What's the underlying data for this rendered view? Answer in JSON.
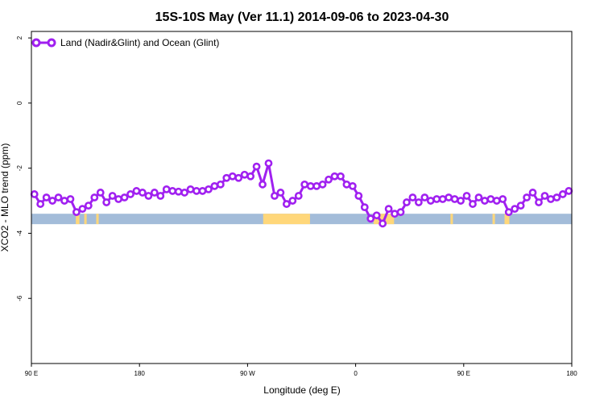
{
  "chart_data": {
    "type": "line",
    "title": "15S-10S May (Ver 11.1)   2014-09-06 to 2023-04-30",
    "xlabel": "Longitude (deg E)",
    "ylabel": "XCO2 - MLO trend (ppm)",
    "xlim": [
      90,
      540
    ],
    "ylim": [
      -8,
      2.2
    ],
    "x_ticks": [
      {
        "value": 90,
        "label": "90 E"
      },
      {
        "value": 180,
        "label": "180"
      },
      {
        "value": 270,
        "label": "90 W"
      },
      {
        "value": 360,
        "label": "0"
      },
      {
        "value": 450,
        "label": "90 E"
      },
      {
        "value": 540,
        "label": "180"
      }
    ],
    "y_ticks": [
      {
        "value": 2,
        "label": "2"
      },
      {
        "value": 0,
        "label": "0"
      },
      {
        "value": -2,
        "label": "-2"
      },
      {
        "value": -4,
        "label": "-4"
      },
      {
        "value": -6,
        "label": "-6"
      }
    ],
    "legend_position": "top-left",
    "series": [
      {
        "name": "Land (Nadir&Glint) and Ocean (Glint)",
        "color": "#a020f0",
        "x": [
          92.5,
          97.5,
          102.5,
          107.5,
          112.5,
          117.5,
          122.5,
          127.5,
          132.5,
          137.5,
          142.5,
          147.5,
          152.5,
          157.5,
          162.5,
          167.5,
          172.5,
          177.5,
          182.5,
          187.5,
          192.5,
          197.5,
          202.5,
          207.5,
          212.5,
          217.5,
          222.5,
          227.5,
          232.5,
          237.5,
          242.5,
          247.5,
          252.5,
          257.5,
          262.5,
          267.5,
          272.5,
          277.5,
          282.5,
          287.5,
          292.5,
          297.5,
          302.5,
          307.5,
          312.5,
          317.5,
          322.5,
          327.5,
          332.5,
          337.5,
          342.5,
          347.5,
          352.5,
          357.5,
          362.5,
          367.5,
          372.5,
          377.5,
          382.5,
          387.5,
          392.5,
          397.5,
          402.5,
          407.5,
          412.5,
          417.5,
          422.5,
          427.5,
          432.5,
          437.5,
          442.5,
          447.5,
          452.5,
          457.5,
          462.5,
          467.5,
          472.5,
          477.5,
          482.5,
          487.5,
          492.5,
          497.5,
          502.5,
          507.5,
          512.5,
          517.5,
          522.5,
          527.5,
          532.5,
          537.5
        ],
        "y": [
          -2.8,
          -3.1,
          -2.9,
          -3.0,
          -2.9,
          -3.0,
          -2.95,
          -3.35,
          -3.25,
          -3.15,
          -2.9,
          -2.75,
          -3.05,
          -2.85,
          -2.95,
          -2.9,
          -2.8,
          -2.7,
          -2.75,
          -2.85,
          -2.75,
          -2.85,
          -2.65,
          -2.7,
          -2.72,
          -2.75,
          -2.65,
          -2.7,
          -2.7,
          -2.65,
          -2.55,
          -2.5,
          -2.3,
          -2.25,
          -2.3,
          -2.2,
          -2.25,
          -1.95,
          -2.5,
          -1.85,
          -2.85,
          -2.75,
          -3.1,
          -3.0,
          -2.85,
          -2.5,
          -2.55,
          -2.55,
          -2.5,
          -2.35,
          -2.25,
          -2.25,
          -2.5,
          -2.55,
          -2.85,
          -3.2,
          -3.55,
          -3.45,
          -3.7,
          -3.25,
          -3.4,
          -3.35,
          -3.05,
          -2.9,
          -3.05,
          -2.9,
          -3.0,
          -2.95,
          -2.95,
          -2.9,
          -2.95,
          -3.0,
          -2.85,
          -3.1,
          -2.9,
          -3.0,
          -2.95,
          -3.0,
          -2.95,
          -3.35,
          -3.25,
          -3.15,
          -2.9,
          -2.75,
          -3.05,
          -2.85,
          -2.95,
          -2.9,
          -2.8,
          -2.7
        ]
      }
    ],
    "surface_band": {
      "y": [
        -3.72,
        -3.4
      ],
      "ocean_color": "#a3bcd9",
      "land_color": "#ffd77a",
      "land_segments": [
        [
          127,
          130
        ],
        [
          134,
          136
        ],
        [
          144,
          146
        ],
        [
          283,
          322
        ],
        [
          375,
          392
        ],
        [
          439,
          441
        ],
        [
          474,
          476
        ],
        [
          484,
          488
        ]
      ]
    }
  }
}
